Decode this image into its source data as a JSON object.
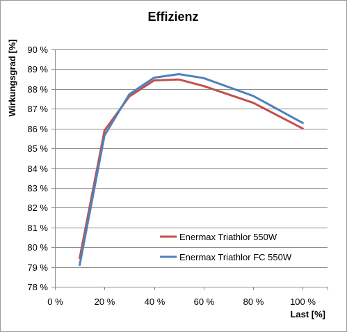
{
  "chart_data": {
    "type": "line",
    "title": "Effizienz",
    "xlabel": "Last [%]",
    "ylabel": "Wirkungsgrad [%]",
    "xlim": [
      0,
      110
    ],
    "ylim": [
      78,
      90
    ],
    "x_ticks": [
      0,
      20,
      40,
      60,
      80,
      100
    ],
    "x_tick_labels": [
      "0 %",
      "20 %",
      "40 %",
      "60 %",
      "80 %",
      "100 %"
    ],
    "y_ticks": [
      78,
      79,
      80,
      81,
      82,
      83,
      84,
      85,
      86,
      87,
      88,
      89,
      90
    ],
    "y_tick_labels": [
      "78 %",
      "79 %",
      "80 %",
      "81 %",
      "82 %",
      "83 %",
      "84 %",
      "85 %",
      "86 %",
      "87 %",
      "88 %",
      "89 %",
      "90 %"
    ],
    "grid": "horizontal",
    "legend_position": "lower-right",
    "series": [
      {
        "name": "Enermax Triathlor 550W",
        "color": "#c0504d",
        "x": [
          10,
          20,
          30,
          40,
          50,
          60,
          80,
          100
        ],
        "y": [
          79.45,
          85.9,
          87.62,
          88.43,
          88.48,
          88.15,
          87.3,
          86.0
        ]
      },
      {
        "name": "Enermax Triathlor FC 550W",
        "color": "#4f81bd",
        "x": [
          10,
          20,
          30,
          40,
          50,
          60,
          80,
          100
        ],
        "y": [
          79.1,
          85.65,
          87.73,
          88.57,
          88.75,
          88.55,
          87.65,
          86.28
        ]
      }
    ]
  }
}
